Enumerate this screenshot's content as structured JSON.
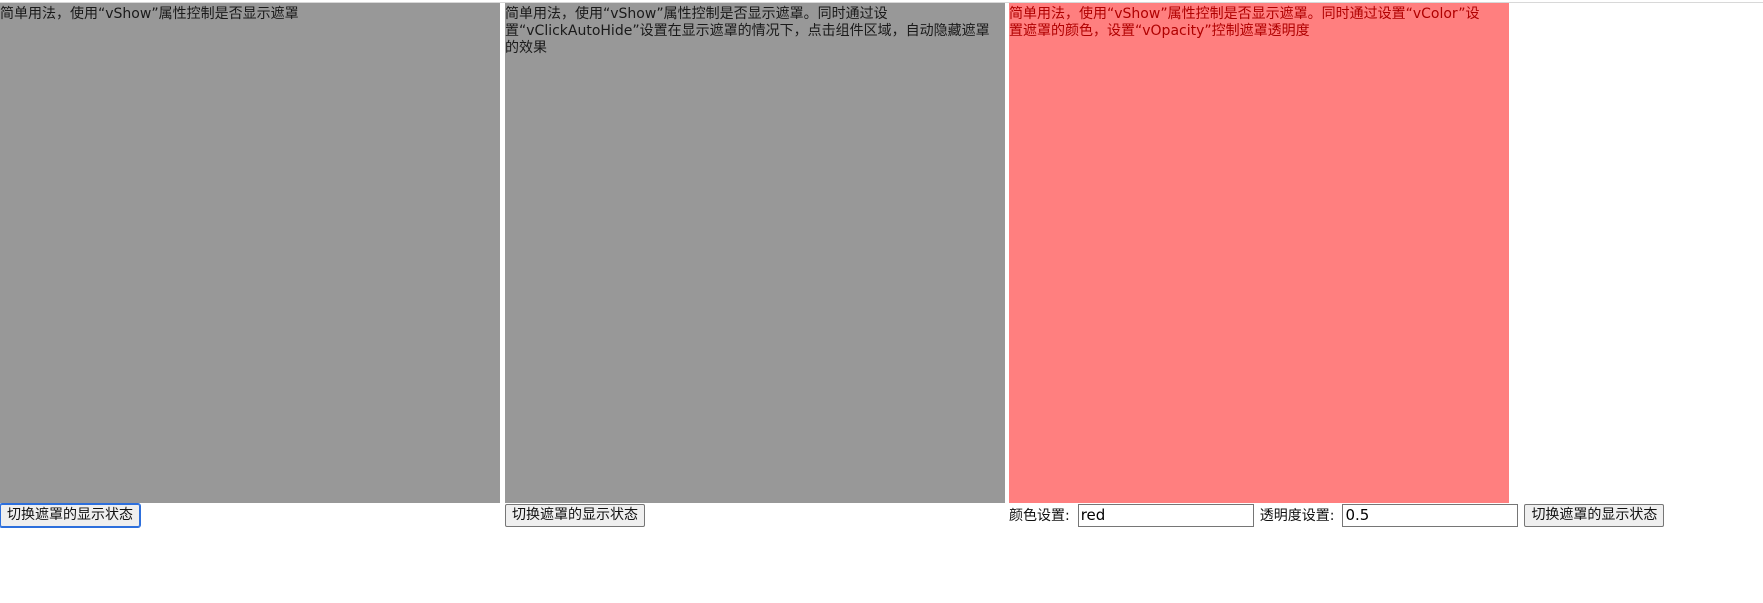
{
  "demos": [
    {
      "description": "简单用法，使用“vShow”属性控制是否显示遮罩",
      "toggle_label": "切换遮罩的显示状态"
    },
    {
      "description": "简单用法，使用“vShow”属性控制是否显示遮罩。同时通过设置“vClickAutoHide”设置在显示遮罩的情况下，点击组件区域，自动隐藏遮罩的效果",
      "toggle_label": "切换遮罩的显示状态"
    },
    {
      "description": "简单用法，使用“vShow”属性控制是否显示遮罩。同时通过设置“vColor”设置遮罩的颜色，设置“vOpacity”控制遮罩透明度",
      "color_label": "颜色设置:",
      "color_value": "red",
      "opacity_label": "透明度设置:",
      "opacity_value": "0.5",
      "toggle_label": "切换遮罩的显示状态"
    }
  ],
  "colors": {
    "default_mask": "#989898",
    "red_mask": "#ff7f7f"
  }
}
